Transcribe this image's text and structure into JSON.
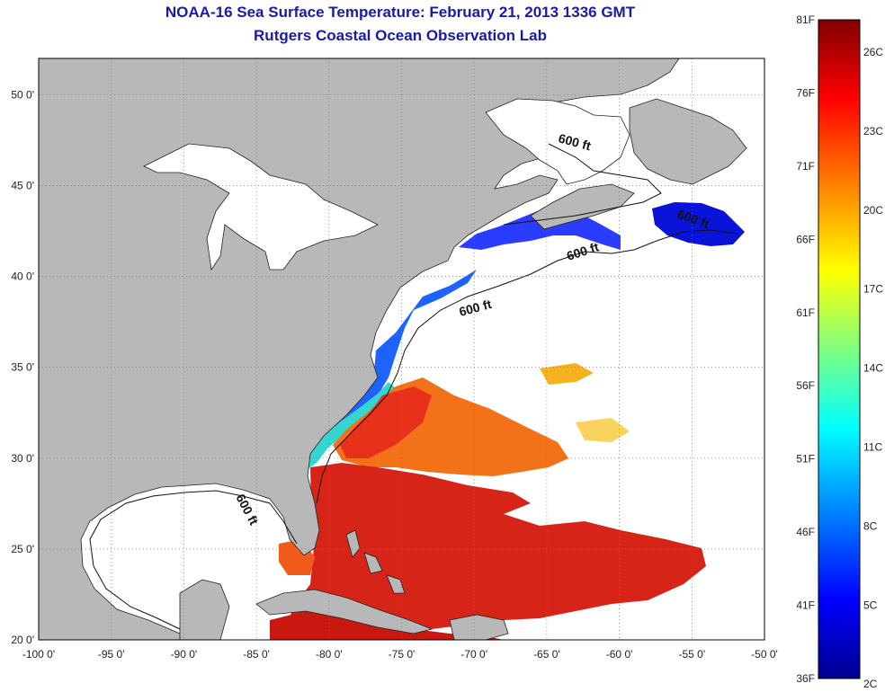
{
  "title": "NOAA-16 Sea Surface Temperature:  February 21, 2013 1336 GMT",
  "subtitle": "Rutgers Coastal Ocean Observation Lab",
  "chart_data": {
    "type": "heatmap",
    "x_axis": {
      "range": [
        -100,
        -50
      ],
      "ticks": [
        "-100 0'",
        "-95 0'",
        "-90 0'",
        "-85 0'",
        "-80 0'",
        "-75 0'",
        "-70 0'",
        "-65 0'",
        "-60 0'",
        "-55 0'",
        "-50 0'"
      ]
    },
    "y_axis": {
      "range": [
        20,
        52
      ],
      "ticks": [
        "20 0'",
        "25 0'",
        "30 0'",
        "35 0'",
        "40 0'",
        "45 0'",
        "50 0'"
      ]
    },
    "grid": true,
    "colorbar": {
      "range_f": [
        36,
        81
      ],
      "labels_f": [
        "81F",
        "76F",
        "71F",
        "66F",
        "61F",
        "56F",
        "51F",
        "46F",
        "41F",
        "36F"
      ],
      "labels_c": [
        "26C",
        "23C",
        "20C",
        "17C",
        "14C",
        "11C",
        "8C",
        "5C",
        "2C"
      ],
      "colors": [
        "#00008f",
        "#0000ff",
        "#0080ff",
        "#00ffff",
        "#80ff80",
        "#ffff00",
        "#ff8000",
        "#ff0000",
        "#800000"
      ]
    },
    "annotations": [
      "600 ft",
      "600 ft",
      "600 ft",
      "600 ft",
      "600 ft"
    ]
  }
}
